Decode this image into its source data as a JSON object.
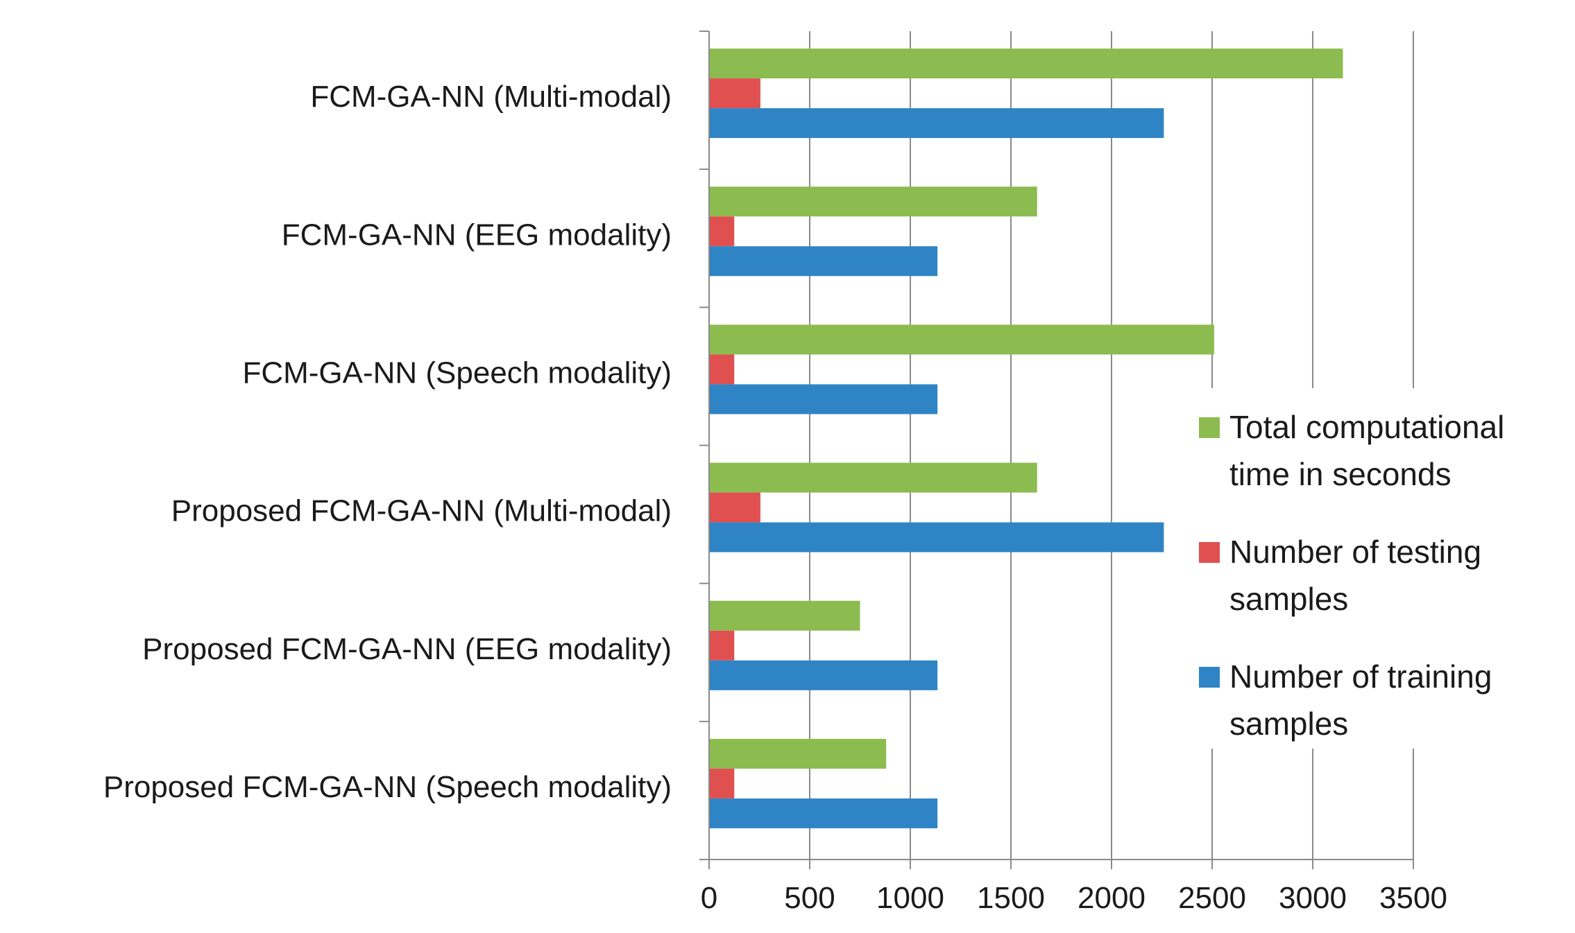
{
  "chart_data": {
    "type": "bar",
    "orientation": "horizontal",
    "categories": [
      "FCM-GA-NN (Multi-modal)",
      "FCM-GA-NN (EEG modality)",
      "FCM-GA-NN (Speech modality)",
      "Proposed FCM-GA-NN (Multi-modal)",
      "Proposed FCM-GA-NN (EEG modality)",
      "Proposed FCM-GA-NN (Speech modality)"
    ],
    "series": [
      {
        "name": "Total computational time in seconds",
        "legend_lines": [
          "Total computational",
          "time in seconds"
        ],
        "color": "#8cbb4f",
        "values": [
          3150,
          1630,
          2510,
          1630,
          750,
          880
        ]
      },
      {
        "name": "Number of testing samples",
        "legend_lines": [
          "Number of testing",
          "samples"
        ],
        "color": "#e05050",
        "values": [
          255,
          125,
          125,
          255,
          125,
          125
        ]
      },
      {
        "name": "Number of training samples",
        "legend_lines": [
          "Number of training",
          "samples"
        ],
        "color": "#2f84c5",
        "values": [
          2260,
          1135,
          1135,
          2260,
          1135,
          1135
        ]
      }
    ],
    "xlim": [
      0,
      3500
    ],
    "xticks": [
      "0",
      "500",
      "1000",
      "1500",
      "2000",
      "2500",
      "3000",
      "3500"
    ],
    "grid": true,
    "legend_position": "right"
  }
}
